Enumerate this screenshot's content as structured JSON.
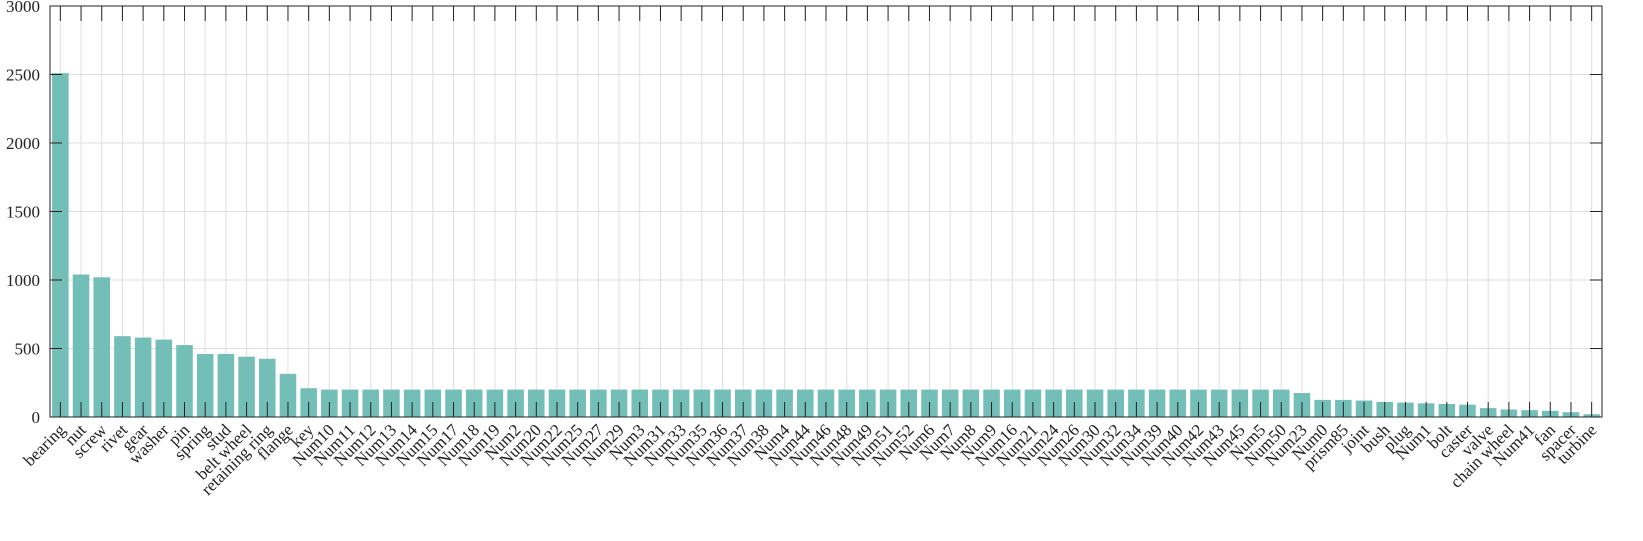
{
  "chart_data": {
    "type": "bar",
    "title": "",
    "xlabel": "",
    "ylabel": "",
    "ylim": [
      0,
      3000
    ],
    "yticks": [
      0,
      500,
      1000,
      1500,
      2000,
      2500,
      3000
    ],
    "ytick_labels": [
      "0",
      "500",
      "1000",
      "1500",
      "2000",
      "2500",
      "3000"
    ],
    "grid": true,
    "bar_color": "#73bfb8",
    "categories": [
      "bearing",
      "nut",
      "screw",
      "rivet",
      "gear",
      "washer",
      "pin",
      "spring",
      "stud",
      "belt wheel",
      "retaining ring",
      "flange",
      "key",
      "Num10",
      "Num11",
      "Num12",
      "Num13",
      "Num14",
      "Num15",
      "Num17",
      "Num18",
      "Num19",
      "Num2",
      "Num20",
      "Num22",
      "Num25",
      "Num27",
      "Num29",
      "Num3",
      "Num31",
      "Num33",
      "Num35",
      "Num36",
      "Num37",
      "Num38",
      "Num4",
      "Num44",
      "Num46",
      "Num48",
      "Num49",
      "Num51",
      "Num52",
      "Num6",
      "Num7",
      "Num8",
      "Num9",
      "Num16",
      "Num21",
      "Num24",
      "Num26",
      "Num30",
      "Num32",
      "Num34",
      "Num39",
      "Num40",
      "Num42",
      "Num43",
      "Num45",
      "Num5",
      "Num50",
      "Num23",
      "Num0",
      "prism85",
      "joint",
      "bush",
      "plug",
      "Num1",
      "bolt",
      "caster",
      "valve",
      "chain wheel",
      "Num41",
      "fan",
      "spacer",
      "turbine"
    ],
    "values": [
      2510,
      1040,
      1020,
      590,
      580,
      565,
      525,
      460,
      460,
      440,
      425,
      315,
      210,
      200,
      200,
      200,
      200,
      200,
      200,
      200,
      200,
      200,
      200,
      200,
      200,
      200,
      200,
      200,
      200,
      200,
      200,
      200,
      200,
      200,
      200,
      200,
      200,
      200,
      200,
      200,
      200,
      200,
      200,
      200,
      200,
      200,
      200,
      200,
      200,
      200,
      200,
      200,
      200,
      200,
      200,
      200,
      200,
      200,
      200,
      200,
      175,
      125,
      125,
      120,
      110,
      105,
      100,
      95,
      90,
      65,
      55,
      50,
      45,
      35,
      20
    ]
  }
}
